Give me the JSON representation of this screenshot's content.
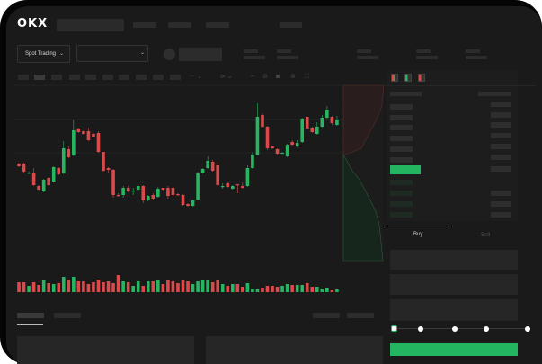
{
  "header": {
    "logo": "OKX"
  },
  "market_bar": {
    "trading_mode": "Spot Trading"
  },
  "order_form": {
    "tabs": [
      {
        "label": "Buy",
        "active": true
      },
      {
        "label": "Sell",
        "active": false
      }
    ],
    "slider_level": 0
  },
  "colors": {
    "up": "#27b562",
    "down": "#d94b4b",
    "accent": "#23b560",
    "background": "#1a1a1a"
  },
  "icons": [
    "order-book-both-icon",
    "order-book-bids-icon",
    "order-book-asks-icon",
    "indicator-icon",
    "drawing-icon",
    "camera-icon",
    "settings-icon",
    "fullscreen-icon",
    "chevron-down-icon"
  ],
  "chart_data": {
    "type": "candlestick",
    "grid": true,
    "candles": [
      {
        "o": 118,
        "c": 115,
        "h": 119,
        "l": 114
      },
      {
        "o": 118,
        "c": 109,
        "h": 119,
        "l": 108
      },
      {
        "o": 107,
        "c": 108,
        "h": 109,
        "l": 106
      },
      {
        "o": 108,
        "c": 94,
        "h": 113,
        "l": 93
      },
      {
        "o": 93,
        "c": 89,
        "h": 94,
        "l": 88
      },
      {
        "o": 87,
        "c": 100,
        "h": 101,
        "l": 86
      },
      {
        "o": 102,
        "c": 94,
        "h": 103,
        "l": 93
      },
      {
        "o": 98,
        "c": 114,
        "h": 115,
        "l": 97
      },
      {
        "o": 113,
        "c": 106,
        "h": 114,
        "l": 105
      },
      {
        "o": 107,
        "c": 135,
        "h": 143,
        "l": 106
      },
      {
        "o": 134,
        "c": 125,
        "h": 137,
        "l": 124
      },
      {
        "o": 127,
        "c": 155,
        "h": 167,
        "l": 126
      },
      {
        "o": 157,
        "c": 153,
        "h": 158,
        "l": 152
      },
      {
        "o": 154,
        "c": 151,
        "h": 155,
        "l": 150
      },
      {
        "o": 154,
        "c": 144,
        "h": 158,
        "l": 143
      },
      {
        "o": 151,
        "c": 148,
        "h": 152,
        "l": 148
      },
      {
        "o": 152,
        "c": 131,
        "h": 154,
        "l": 130
      },
      {
        "o": 131,
        "c": 110,
        "h": 131,
        "l": 109
      },
      {
        "o": 113,
        "c": 111,
        "h": 114,
        "l": 108
      },
      {
        "o": 111,
        "c": 83,
        "h": 112,
        "l": 80
      },
      {
        "o": 83,
        "c": 82,
        "h": 85,
        "l": 81
      },
      {
        "o": 83,
        "c": 91,
        "h": 93,
        "l": 80
      },
      {
        "o": 91,
        "c": 87,
        "h": 93,
        "l": 86
      },
      {
        "o": 87,
        "c": 88,
        "h": 91,
        "l": 83
      },
      {
        "o": 89,
        "c": 93,
        "h": 95,
        "l": 88
      },
      {
        "o": 93,
        "c": 77,
        "h": 94,
        "l": 74
      },
      {
        "o": 77,
        "c": 82,
        "h": 83,
        "l": 76
      },
      {
        "o": 83,
        "c": 79,
        "h": 85,
        "l": 78
      },
      {
        "o": 81,
        "c": 90,
        "h": 92,
        "l": 80
      },
      {
        "o": 91,
        "c": 89,
        "h": 91,
        "l": 88
      },
      {
        "o": 91,
        "c": 82,
        "h": 93,
        "l": 79
      },
      {
        "o": 91,
        "c": 83,
        "h": 92,
        "l": 81
      },
      {
        "o": 84,
        "c": 83,
        "h": 85,
        "l": 82
      },
      {
        "o": 83,
        "c": 72,
        "h": 84,
        "l": 71
      },
      {
        "o": 73,
        "c": 71,
        "h": 74,
        "l": 70
      },
      {
        "o": 71,
        "c": 77,
        "h": 78,
        "l": 70
      },
      {
        "o": 78,
        "c": 107,
        "h": 109,
        "l": 77
      },
      {
        "o": 108,
        "c": 112,
        "h": 113,
        "l": 107
      },
      {
        "o": 113,
        "c": 121,
        "h": 126,
        "l": 112
      },
      {
        "o": 120,
        "c": 110,
        "h": 122,
        "l": 109
      },
      {
        "o": 116,
        "c": 94,
        "h": 120,
        "l": 92
      },
      {
        "o": 92,
        "c": 93,
        "h": 96,
        "l": 90
      },
      {
        "o": 96,
        "c": 92,
        "h": 97,
        "l": 91
      },
      {
        "o": 90,
        "c": 93,
        "h": 94,
        "l": 89
      },
      {
        "o": 95,
        "c": 94,
        "h": 95,
        "l": 85
      },
      {
        "o": 93,
        "c": 91,
        "h": 97,
        "l": 90
      },
      {
        "o": 93,
        "c": 113,
        "h": 116,
        "l": 92
      },
      {
        "o": 113,
        "c": 128,
        "h": 131,
        "l": 112
      },
      {
        "o": 128,
        "c": 170,
        "h": 185,
        "l": 127
      },
      {
        "o": 172,
        "c": 159,
        "h": 174,
        "l": 158
      },
      {
        "o": 159,
        "c": 135,
        "h": 160,
        "l": 133
      },
      {
        "o": 137,
        "c": 135,
        "h": 138,
        "l": 134
      },
      {
        "o": 134,
        "c": 129,
        "h": 135,
        "l": 128
      },
      {
        "o": 130,
        "c": 130,
        "h": 131,
        "l": 129
      },
      {
        "o": 126,
        "c": 139,
        "h": 140,
        "l": 125
      },
      {
        "o": 142,
        "c": 139,
        "h": 144,
        "l": 138
      },
      {
        "o": 137,
        "c": 141,
        "h": 144,
        "l": 136
      },
      {
        "o": 142,
        "c": 168,
        "h": 169,
        "l": 141
      },
      {
        "o": 170,
        "c": 157,
        "h": 171,
        "l": 156
      },
      {
        "o": 158,
        "c": 153,
        "h": 159,
        "l": 152
      },
      {
        "o": 151,
        "c": 159,
        "h": 164,
        "l": 150
      },
      {
        "o": 159,
        "c": 169,
        "h": 172,
        "l": 158
      },
      {
        "o": 169,
        "c": 178,
        "h": 182,
        "l": 168
      },
      {
        "o": 170,
        "c": 163,
        "h": 171,
        "l": 161
      },
      {
        "o": 161,
        "c": 167,
        "h": 171,
        "l": 160
      }
    ],
    "volume": [
      11,
      11,
      7,
      11,
      8,
      13,
      10,
      9,
      10,
      17,
      14,
      17,
      12,
      12,
      9,
      11,
      14,
      11,
      12,
      10,
      19,
      12,
      11,
      7,
      12,
      7,
      12,
      12,
      13,
      9,
      13,
      12,
      10,
      13,
      12,
      9,
      12,
      13,
      13,
      11,
      13,
      9,
      7,
      9,
      9,
      6,
      10,
      4,
      3,
      5,
      7,
      7,
      6,
      7,
      9,
      8,
      8,
      8,
      10,
      6,
      6,
      4,
      5,
      2,
      3
    ]
  }
}
